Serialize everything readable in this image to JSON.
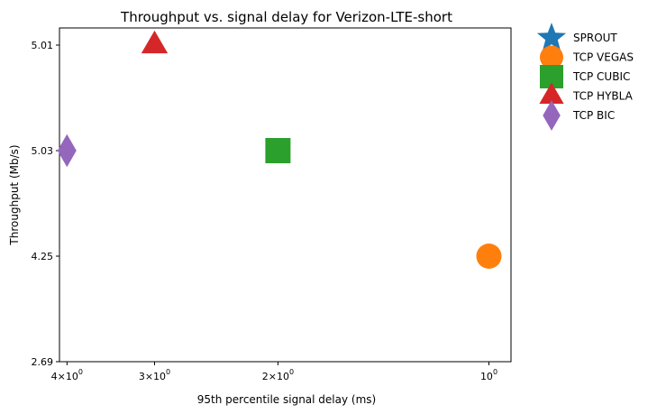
{
  "chart_data": {
    "type": "scatter",
    "title": "Throughput vs. signal delay for Verizon-LTE-short",
    "xlabel": "95th percentile signal delay (ms)",
    "ylabel": "Throughput (Mb/s)",
    "x_scale": "log",
    "x_inverted": true,
    "xlim": [
      4.1,
      0.93
    ],
    "ylim_rank": [
      0,
      3
    ],
    "xticks": [
      {
        "value": 4,
        "base": "4",
        "exp": "0"
      },
      {
        "value": 3,
        "base": "3",
        "exp": "0"
      },
      {
        "value": 2,
        "base": "2",
        "exp": "0"
      },
      {
        "value": 1,
        "base": "10",
        "exp": "0"
      }
    ],
    "yticks": [
      {
        "rank": 0,
        "label": "2.69"
      },
      {
        "rank": 1,
        "label": "4.25"
      },
      {
        "rank": 2,
        "label": "5.03"
      },
      {
        "rank": 3,
        "label": "5.01"
      }
    ],
    "series": [
      {
        "name": "SPROUT",
        "marker": "star",
        "color": "#1f77b4",
        "x": null,
        "y_rank": null
      },
      {
        "name": "TCP VEGAS",
        "marker": "circle",
        "color": "#ff7f0e",
        "x": 1.0,
        "y_rank": 1
      },
      {
        "name": "TCP CUBIC",
        "marker": "square",
        "color": "#2ca02c",
        "x": 2.0,
        "y_rank": 2
      },
      {
        "name": "TCP HYBLA",
        "marker": "triangle",
        "color": "#d62728",
        "x": 3.0,
        "y_rank": 3
      },
      {
        "name": "TCP BIC",
        "marker": "diamond",
        "color": "#9467bd",
        "x": 4.0,
        "y_rank": 2
      }
    ],
    "legend_position": "outside-top-right",
    "grid": false
  }
}
